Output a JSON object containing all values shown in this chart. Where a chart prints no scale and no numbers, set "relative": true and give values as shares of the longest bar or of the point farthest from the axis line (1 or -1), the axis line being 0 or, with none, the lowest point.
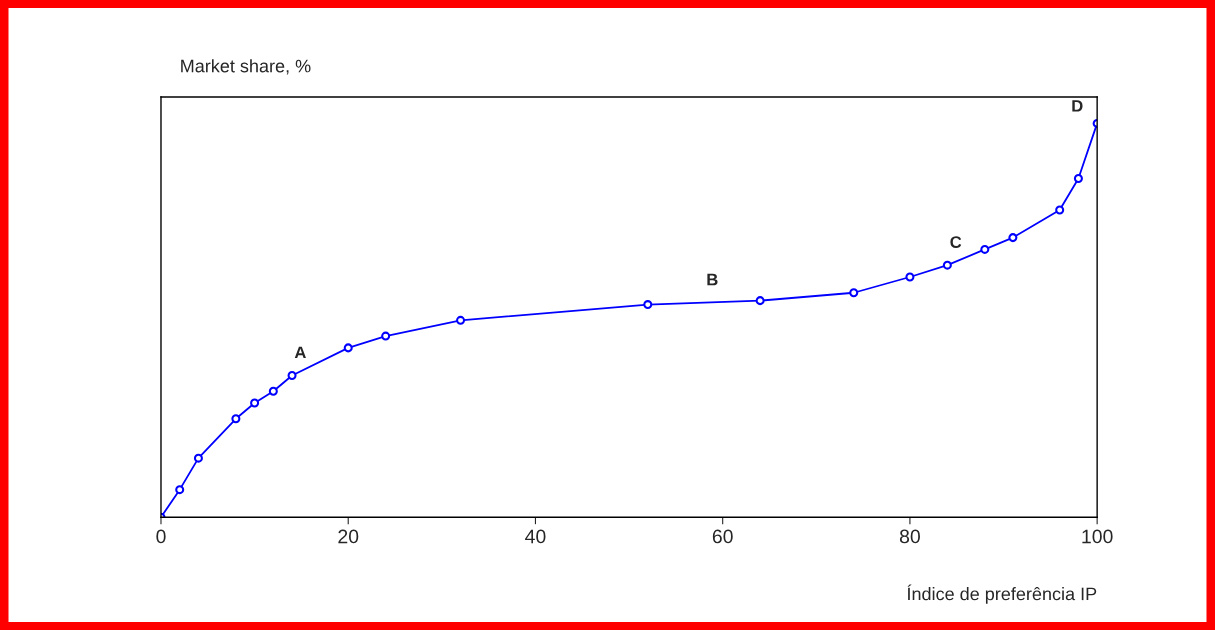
{
  "chart_data": {
    "type": "line",
    "relative": true,
    "xlabel": "Índice de preferência IP",
    "ylabel": "Market share, %",
    "x": [
      0,
      2,
      4,
      8,
      10,
      12,
      14,
      20,
      24,
      32,
      52,
      64,
      74,
      80,
      84,
      88,
      91,
      96,
      98,
      100
    ],
    "values": [
      0,
      0.07,
      0.15,
      0.25,
      0.29,
      0.32,
      0.36,
      0.43,
      0.46,
      0.5,
      0.54,
      0.55,
      0.57,
      0.61,
      0.64,
      0.68,
      0.71,
      0.78,
      0.86,
      1
    ],
    "color": "#0000ff",
    "marker": "circle",
    "line_style": "solid",
    "grid": false,
    "legend": false,
    "xlim": [
      0,
      100
    ],
    "xticks": [
      0,
      20,
      40,
      60,
      80,
      100
    ],
    "annotations": [
      {
        "text": "A",
        "x": 14,
        "y": 0.36
      },
      {
        "text": "B",
        "x": 58,
        "y": 0.545
      },
      {
        "text": "C",
        "x": 84,
        "y": 0.64
      },
      {
        "text": "D",
        "x": 100,
        "y": 1
      }
    ]
  }
}
